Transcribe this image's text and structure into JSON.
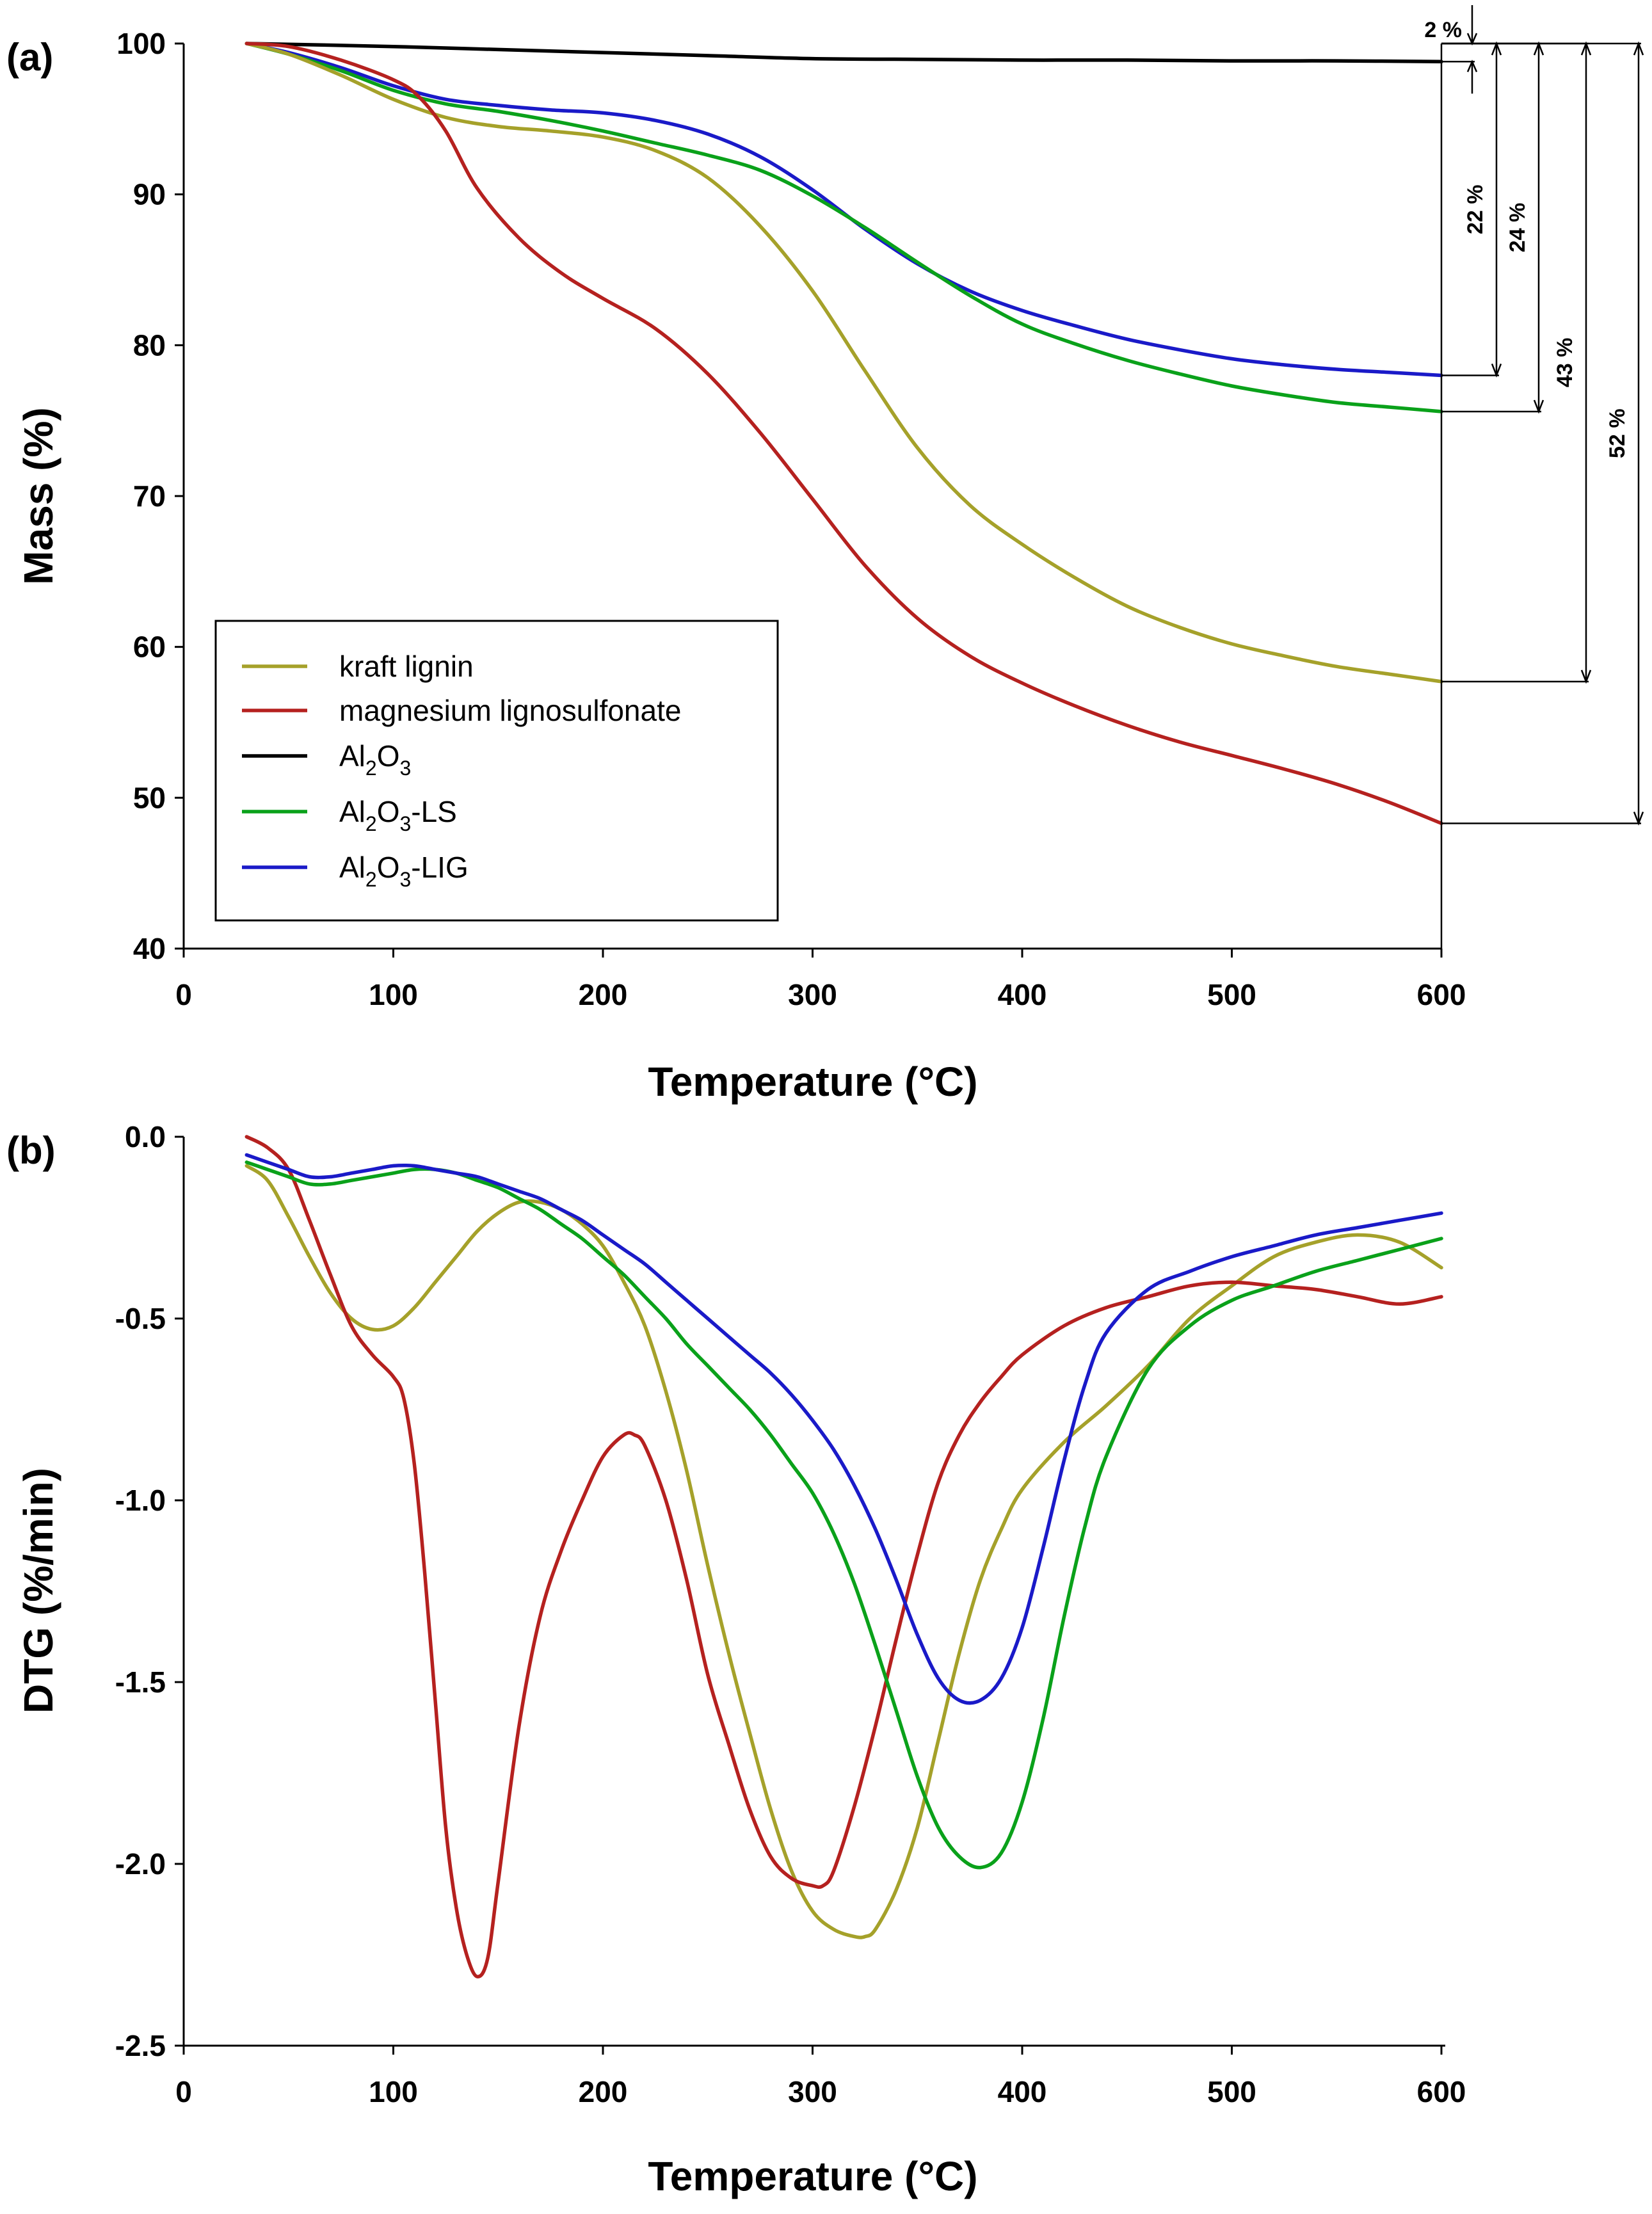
{
  "figure": {
    "colors": {
      "kraft_lignin": "#a5a12a",
      "magnesium_lignosulfonate": "#b5211f",
      "Al2O3": "#000000",
      "Al2O3-LS": "#0aa11a",
      "Al2O3-LIG": "#1a1ac8"
    }
  },
  "chart_data": [
    {
      "panel_label": "(a)",
      "type": "line",
      "title": "",
      "xlabel": "Temperature (°C)",
      "ylabel": "Mass (%)",
      "xlim": [
        0,
        600
      ],
      "ylim": [
        40,
        100
      ],
      "x_ticks": [
        "0",
        "100",
        "200",
        "300",
        "400",
        "500",
        "600"
      ],
      "y_ticks": [
        "40",
        "50",
        "60",
        "70",
        "80",
        "90",
        "100"
      ],
      "grid": false,
      "legend_position": "lower-left",
      "legend": [
        {
          "key": "kraft_lignin",
          "main": "kraft lignin",
          "sub1": "",
          "mid": "",
          "sub2": "",
          "tail": ""
        },
        {
          "key": "magnesium_lignosulfonate",
          "main": "magnesium lignosulfonate",
          "sub1": "",
          "mid": "",
          "sub2": "",
          "tail": ""
        },
        {
          "key": "Al2O3",
          "main": "Al",
          "sub1": "2",
          "mid": "O",
          "sub2": "3",
          "tail": ""
        },
        {
          "key": "Al2O3-LS",
          "main": "Al",
          "sub1": "2",
          "mid": "O",
          "sub2": "3",
          "tail": "-LS"
        },
        {
          "key": "Al2O3-LIG",
          "main": "Al",
          "sub1": "2",
          "mid": "O",
          "sub2": "3",
          "tail": "-LIG"
        }
      ],
      "series": [
        {
          "key": "Al2O3",
          "x": [
            30,
            100,
            150,
            200,
            250,
            300,
            350,
            400,
            450,
            500,
            550,
            600
          ],
          "y": [
            100,
            99.8,
            99.6,
            99.4,
            99.2,
            99.0,
            98.95,
            98.9,
            98.9,
            98.85,
            98.85,
            98.8
          ]
        },
        {
          "key": "Al2O3-LIG",
          "x": [
            30,
            50,
            75,
            100,
            125,
            150,
            175,
            200,
            225,
            250,
            275,
            300,
            325,
            350,
            375,
            400,
            425,
            450,
            475,
            500,
            525,
            550,
            575,
            600
          ],
          "y": [
            100,
            99.4,
            98.4,
            97.2,
            96.3,
            95.9,
            95.6,
            95.4,
            94.9,
            94.0,
            92.5,
            90.3,
            87.7,
            85.4,
            83.6,
            82.3,
            81.3,
            80.4,
            79.7,
            79.1,
            78.7,
            78.4,
            78.2,
            78.0
          ]
        },
        {
          "key": "Al2O3-LS",
          "x": [
            30,
            50,
            75,
            100,
            125,
            150,
            175,
            200,
            225,
            250,
            275,
            300,
            325,
            350,
            375,
            400,
            425,
            450,
            475,
            500,
            525,
            550,
            575,
            600
          ],
          "y": [
            100,
            99.3,
            98.2,
            96.9,
            96.0,
            95.5,
            94.9,
            94.2,
            93.4,
            92.6,
            91.6,
            89.9,
            87.8,
            85.5,
            83.3,
            81.4,
            80.1,
            79.0,
            78.1,
            77.3,
            76.7,
            76.2,
            75.9,
            75.6
          ]
        },
        {
          "key": "kraft_lignin",
          "x": [
            30,
            50,
            75,
            100,
            125,
            150,
            175,
            200,
            225,
            250,
            275,
            300,
            325,
            350,
            375,
            400,
            425,
            450,
            475,
            500,
            525,
            550,
            575,
            600
          ],
          "y": [
            100,
            99.3,
            97.9,
            96.3,
            95.1,
            94.5,
            94.2,
            93.8,
            92.9,
            91.1,
            87.9,
            83.6,
            78.3,
            73.2,
            69.4,
            66.8,
            64.6,
            62.7,
            61.3,
            60.2,
            59.4,
            58.7,
            58.2,
            57.7
          ]
        },
        {
          "key": "magnesium_lignosulfonate",
          "x": [
            30,
            50,
            75,
            100,
            112,
            125,
            140,
            160,
            180,
            200,
            225,
            250,
            275,
            300,
            325,
            350,
            375,
            400,
            425,
            450,
            475,
            500,
            525,
            550,
            575,
            600
          ],
          "y": [
            100,
            99.8,
            98.9,
            97.6,
            96.5,
            94.2,
            90.4,
            87.1,
            84.8,
            83.1,
            81.1,
            78.1,
            74.2,
            69.8,
            65.4,
            61.9,
            59.4,
            57.6,
            56.1,
            54.8,
            53.7,
            52.8,
            51.9,
            50.9,
            49.7,
            48.3
          ]
        }
      ],
      "annotations": [
        {
          "label": "2 %",
          "from": 100,
          "to": 98.8
        },
        {
          "label": "22 %",
          "from": 100,
          "to": 78.0
        },
        {
          "label": "24 %",
          "from": 100,
          "to": 75.6
        },
        {
          "label": "43 %",
          "from": 100,
          "to": 57.7
        },
        {
          "label": "52 %",
          "from": 100,
          "to": 48.3
        }
      ]
    },
    {
      "panel_label": "(b)",
      "type": "line",
      "title": "",
      "xlabel": "Temperature (°C)",
      "ylabel": "DTG (%/min)",
      "xlim": [
        0,
        600
      ],
      "ylim": [
        -2.5,
        0.0
      ],
      "x_ticks": [
        "0",
        "100",
        "200",
        "300",
        "400",
        "500",
        "600"
      ],
      "y_ticks": [
        "-2.5",
        "-2.0",
        "-1.5",
        "-1.0",
        "-0.5",
        "0.0"
      ],
      "grid": false,
      "series": [
        {
          "key": "kraft_lignin",
          "x": [
            30,
            40,
            50,
            60,
            70,
            80,
            90,
            100,
            110,
            120,
            130,
            140,
            150,
            160,
            170,
            180,
            190,
            200,
            210,
            220,
            230,
            240,
            250,
            260,
            270,
            280,
            290,
            300,
            310,
            320,
            325,
            330,
            340,
            350,
            360,
            370,
            380,
            390,
            400,
            420,
            440,
            460,
            480,
            500,
            520,
            540,
            560,
            580,
            600
          ],
          "y": [
            -0.08,
            -0.12,
            -0.22,
            -0.33,
            -0.43,
            -0.5,
            -0.53,
            -0.52,
            -0.47,
            -0.4,
            -0.33,
            -0.26,
            -0.21,
            -0.18,
            -0.18,
            -0.2,
            -0.24,
            -0.3,
            -0.4,
            -0.52,
            -0.7,
            -0.92,
            -1.18,
            -1.42,
            -1.64,
            -1.85,
            -2.02,
            -2.13,
            -2.18,
            -2.2,
            -2.2,
            -2.18,
            -2.07,
            -1.9,
            -1.66,
            -1.42,
            -1.22,
            -1.08,
            -0.97,
            -0.84,
            -0.74,
            -0.63,
            -0.5,
            -0.41,
            -0.33,
            -0.29,
            -0.27,
            -0.29,
            -0.36
          ]
        },
        {
          "key": "magnesium_lignosulfonate",
          "x": [
            30,
            40,
            50,
            60,
            70,
            80,
            90,
            100,
            105,
            110,
            115,
            120,
            125,
            130,
            135,
            140,
            145,
            150,
            160,
            170,
            180,
            190,
            200,
            210,
            215,
            220,
            230,
            240,
            250,
            260,
            270,
            280,
            290,
            300,
            305,
            310,
            320,
            330,
            340,
            350,
            360,
            370,
            380,
            390,
            400,
            420,
            440,
            460,
            480,
            500,
            520,
            540,
            560,
            580,
            600
          ],
          "y": [
            0.0,
            -0.03,
            -0.09,
            -0.23,
            -0.38,
            -0.52,
            -0.6,
            -0.66,
            -0.72,
            -0.9,
            -1.2,
            -1.55,
            -1.9,
            -2.12,
            -2.25,
            -2.31,
            -2.26,
            -2.05,
            -1.62,
            -1.32,
            -1.14,
            -1.0,
            -0.88,
            -0.82,
            -0.82,
            -0.85,
            -1.0,
            -1.22,
            -1.48,
            -1.67,
            -1.85,
            -1.98,
            -2.04,
            -2.06,
            -2.06,
            -2.02,
            -1.84,
            -1.62,
            -1.38,
            -1.15,
            -0.95,
            -0.82,
            -0.73,
            -0.66,
            -0.6,
            -0.52,
            -0.47,
            -0.44,
            -0.41,
            -0.4,
            -0.41,
            -0.42,
            -0.44,
            -0.46,
            -0.44
          ]
        },
        {
          "key": "Al2O3-LS",
          "x": [
            30,
            40,
            50,
            60,
            70,
            80,
            90,
            100,
            110,
            120,
            130,
            140,
            150,
            160,
            170,
            180,
            190,
            200,
            210,
            220,
            230,
            240,
            250,
            260,
            270,
            280,
            290,
            300,
            310,
            320,
            330,
            340,
            350,
            360,
            370,
            380,
            390,
            400,
            410,
            420,
            430,
            440,
            460,
            480,
            500,
            520,
            540,
            560,
            580,
            600
          ],
          "y": [
            -0.07,
            -0.09,
            -0.11,
            -0.13,
            -0.13,
            -0.12,
            -0.11,
            -0.1,
            -0.09,
            -0.09,
            -0.1,
            -0.12,
            -0.14,
            -0.17,
            -0.2,
            -0.24,
            -0.28,
            -0.33,
            -0.38,
            -0.44,
            -0.5,
            -0.57,
            -0.63,
            -0.69,
            -0.75,
            -0.82,
            -0.9,
            -0.98,
            -1.09,
            -1.23,
            -1.4,
            -1.58,
            -1.76,
            -1.9,
            -1.98,
            -2.01,
            -1.97,
            -1.83,
            -1.6,
            -1.32,
            -1.07,
            -0.88,
            -0.64,
            -0.52,
            -0.45,
            -0.41,
            -0.37,
            -0.34,
            -0.31,
            -0.28
          ]
        },
        {
          "key": "Al2O3-LIG",
          "x": [
            30,
            40,
            50,
            60,
            70,
            80,
            90,
            100,
            110,
            120,
            130,
            140,
            150,
            160,
            170,
            180,
            190,
            200,
            210,
            220,
            230,
            240,
            250,
            260,
            270,
            280,
            290,
            300,
            310,
            320,
            330,
            340,
            350,
            360,
            370,
            380,
            390,
            400,
            410,
            420,
            430,
            440,
            460,
            480,
            500,
            520,
            540,
            560,
            580,
            600
          ],
          "y": [
            -0.05,
            -0.07,
            -0.09,
            -0.11,
            -0.11,
            -0.1,
            -0.09,
            -0.08,
            -0.08,
            -0.09,
            -0.1,
            -0.11,
            -0.13,
            -0.15,
            -0.17,
            -0.2,
            -0.23,
            -0.27,
            -0.31,
            -0.35,
            -0.4,
            -0.45,
            -0.5,
            -0.55,
            -0.6,
            -0.65,
            -0.71,
            -0.78,
            -0.86,
            -0.96,
            -1.08,
            -1.22,
            -1.37,
            -1.49,
            -1.55,
            -1.55,
            -1.49,
            -1.35,
            -1.13,
            -0.89,
            -0.68,
            -0.54,
            -0.42,
            -0.37,
            -0.33,
            -0.3,
            -0.27,
            -0.25,
            -0.23,
            -0.21
          ]
        }
      ]
    }
  ]
}
